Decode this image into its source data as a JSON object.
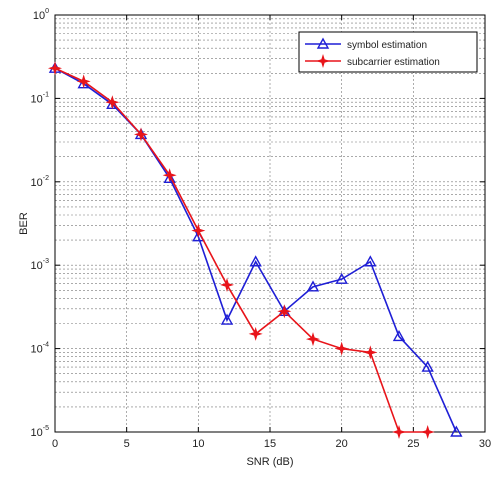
{
  "chart_data": {
    "type": "line",
    "xlabel": "SNR (dB)",
    "ylabel": "BER",
    "x_scale": "linear",
    "y_scale": "log",
    "xlim": [
      0,
      30
    ],
    "ylim": [
      1e-05,
      1
    ],
    "x_ticks": [
      "0",
      "5",
      "10",
      "15",
      "20",
      "25",
      "30"
    ],
    "y_ticks": [
      {
        "base": "10",
        "exp": "0"
      },
      {
        "base": "10",
        "exp": "-1"
      },
      {
        "base": "10",
        "exp": "-2"
      },
      {
        "base": "10",
        "exp": "-3"
      },
      {
        "base": "10",
        "exp": "-4"
      },
      {
        "base": "10",
        "exp": "-5"
      }
    ],
    "grid": true,
    "legend_position": "top-right",
    "series": [
      {
        "name": "symbol estimation",
        "color": "#1f1fd6",
        "marker": "triangle",
        "x": [
          0,
          2,
          4,
          6,
          8,
          10,
          12,
          14,
          16,
          18,
          20,
          22,
          24,
          26,
          28
        ],
        "y": [
          0.23,
          0.15,
          0.085,
          0.037,
          0.011,
          0.0022,
          0.00022,
          0.0011,
          0.00028,
          0.00055,
          0.00068,
          0.0011,
          0.00014,
          6e-05,
          1e-05
        ]
      },
      {
        "name": "subcarrier estimation",
        "color": "#e8141a",
        "marker": "star",
        "x": [
          0,
          2,
          4,
          6,
          8,
          10,
          12,
          14,
          16,
          18,
          20,
          22,
          24,
          26
        ],
        "y": [
          0.23,
          0.16,
          0.09,
          0.037,
          0.012,
          0.0026,
          0.00058,
          0.00015,
          0.00028,
          0.00013,
          0.0001,
          9e-05,
          1e-05,
          1e-05
        ]
      }
    ]
  }
}
